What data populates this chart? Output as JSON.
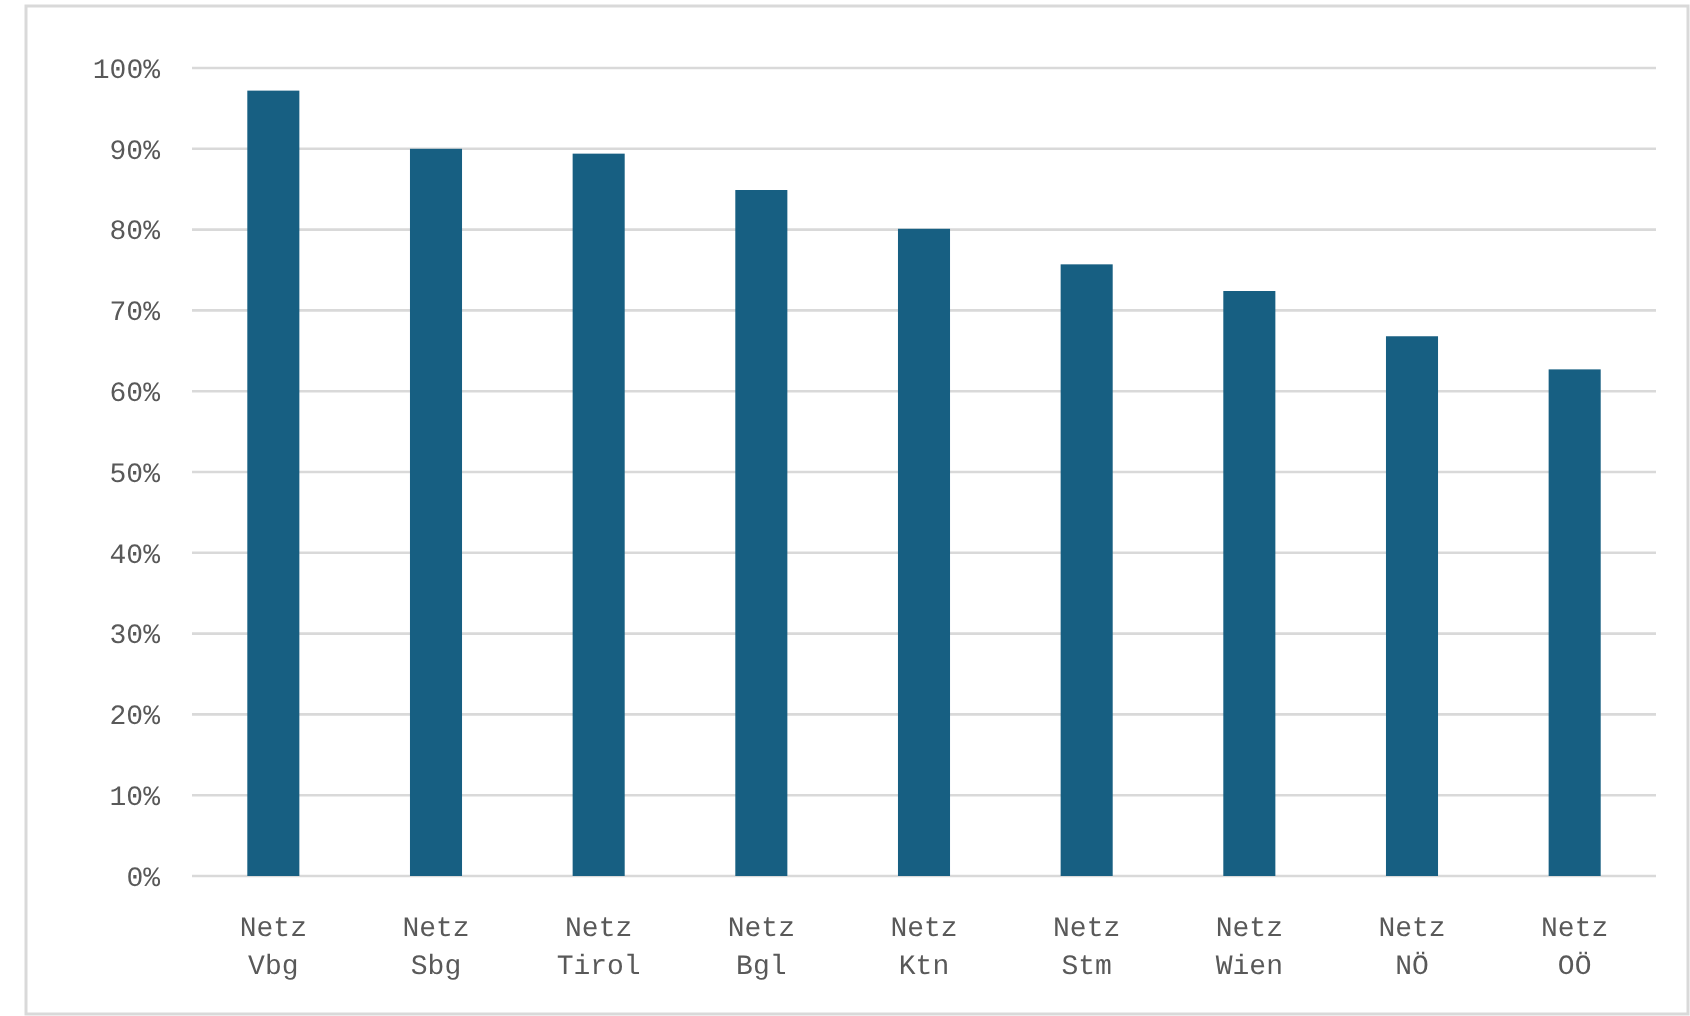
{
  "chart_data": {
    "type": "bar",
    "categories": [
      "Netz Vbg",
      "Netz Sbg",
      "Netz Tirol",
      "Netz Bgl",
      "Netz Ktn",
      "Netz Stm",
      "Netz Wien",
      "Netz NÖ",
      "Netz OÖ"
    ],
    "values": [
      97.2,
      90.0,
      89.4,
      84.9,
      80.1,
      75.7,
      72.4,
      66.8,
      62.7
    ],
    "color": "#175f82",
    "ylim": [
      0,
      100
    ],
    "yticks": [
      {
        "value": 0,
        "label": "0%"
      },
      {
        "value": 10,
        "label": "10%"
      },
      {
        "value": 20,
        "label": "20%"
      },
      {
        "value": 30,
        "label": "30%"
      },
      {
        "value": 40,
        "label": "40%"
      },
      {
        "value": 50,
        "label": "50%"
      },
      {
        "value": 60,
        "label": "60%"
      },
      {
        "value": 70,
        "label": "70%"
      },
      {
        "value": 80,
        "label": "80%"
      },
      {
        "value": 90,
        "label": "90%"
      },
      {
        "value": 100,
        "label": "100%"
      }
    ],
    "grid": "y"
  }
}
